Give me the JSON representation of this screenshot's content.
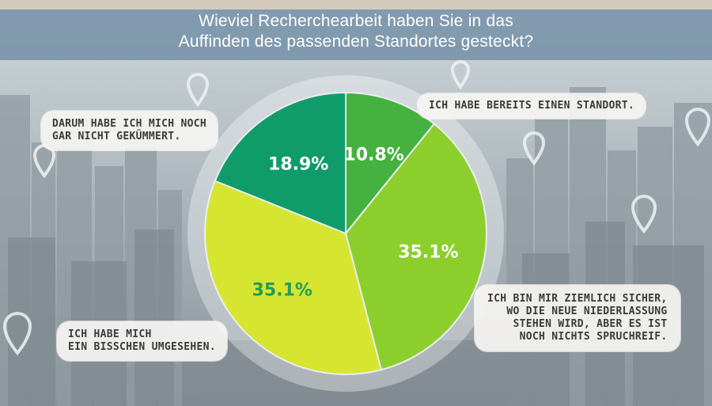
{
  "title_lines": [
    "Wieviel Recherchearbeit haben Sie in das",
    "Auffinden des passenden Standortes gesteckt?"
  ],
  "colors": {
    "slice_1": "#45b13f",
    "slice_2": "#8ccf2c",
    "slice_3": "#d6e530",
    "slice_4": "#109c6a",
    "label_light": "#ffffff",
    "label_dark": "#1f9c57"
  },
  "callouts": {
    "standort": [
      "Ich habe bereits einen Standort."
    ],
    "sicher": [
      "Ich bin mir ziemlich sicher,",
      "wo die neue Niederlassung",
      "stehen wird, aber es ist",
      "noch nichts spruchreif."
    ],
    "umgesehen": [
      "Ich habe mich",
      "ein bisschen umgesehen."
    ],
    "gekuemmert": [
      "Darum habe ich mich noch",
      "gar nicht gekümmert."
    ]
  },
  "chart_data": {
    "type": "pie",
    "title": "Wieviel Recherchearbeit haben Sie in das Auffinden des passenden Standortes gesteckt?",
    "unit": "%",
    "slices": [
      {
        "category": "Ich habe bereits einen Standort.",
        "value": 10.8,
        "label": "10.8%"
      },
      {
        "category": "Ich bin mir ziemlich sicher, wo die neue Niederlassung stehen wird, aber es ist noch nichts spruchreif.",
        "value": 35.1,
        "label": "35.1%"
      },
      {
        "category": "Ich habe mich ein bisschen umgesehen.",
        "value": 35.1,
        "label": "35.1%"
      },
      {
        "category": "Darum habe ich mich noch gar nicht gekümmert.",
        "value": 18.9,
        "label": "18.9%"
      }
    ]
  }
}
